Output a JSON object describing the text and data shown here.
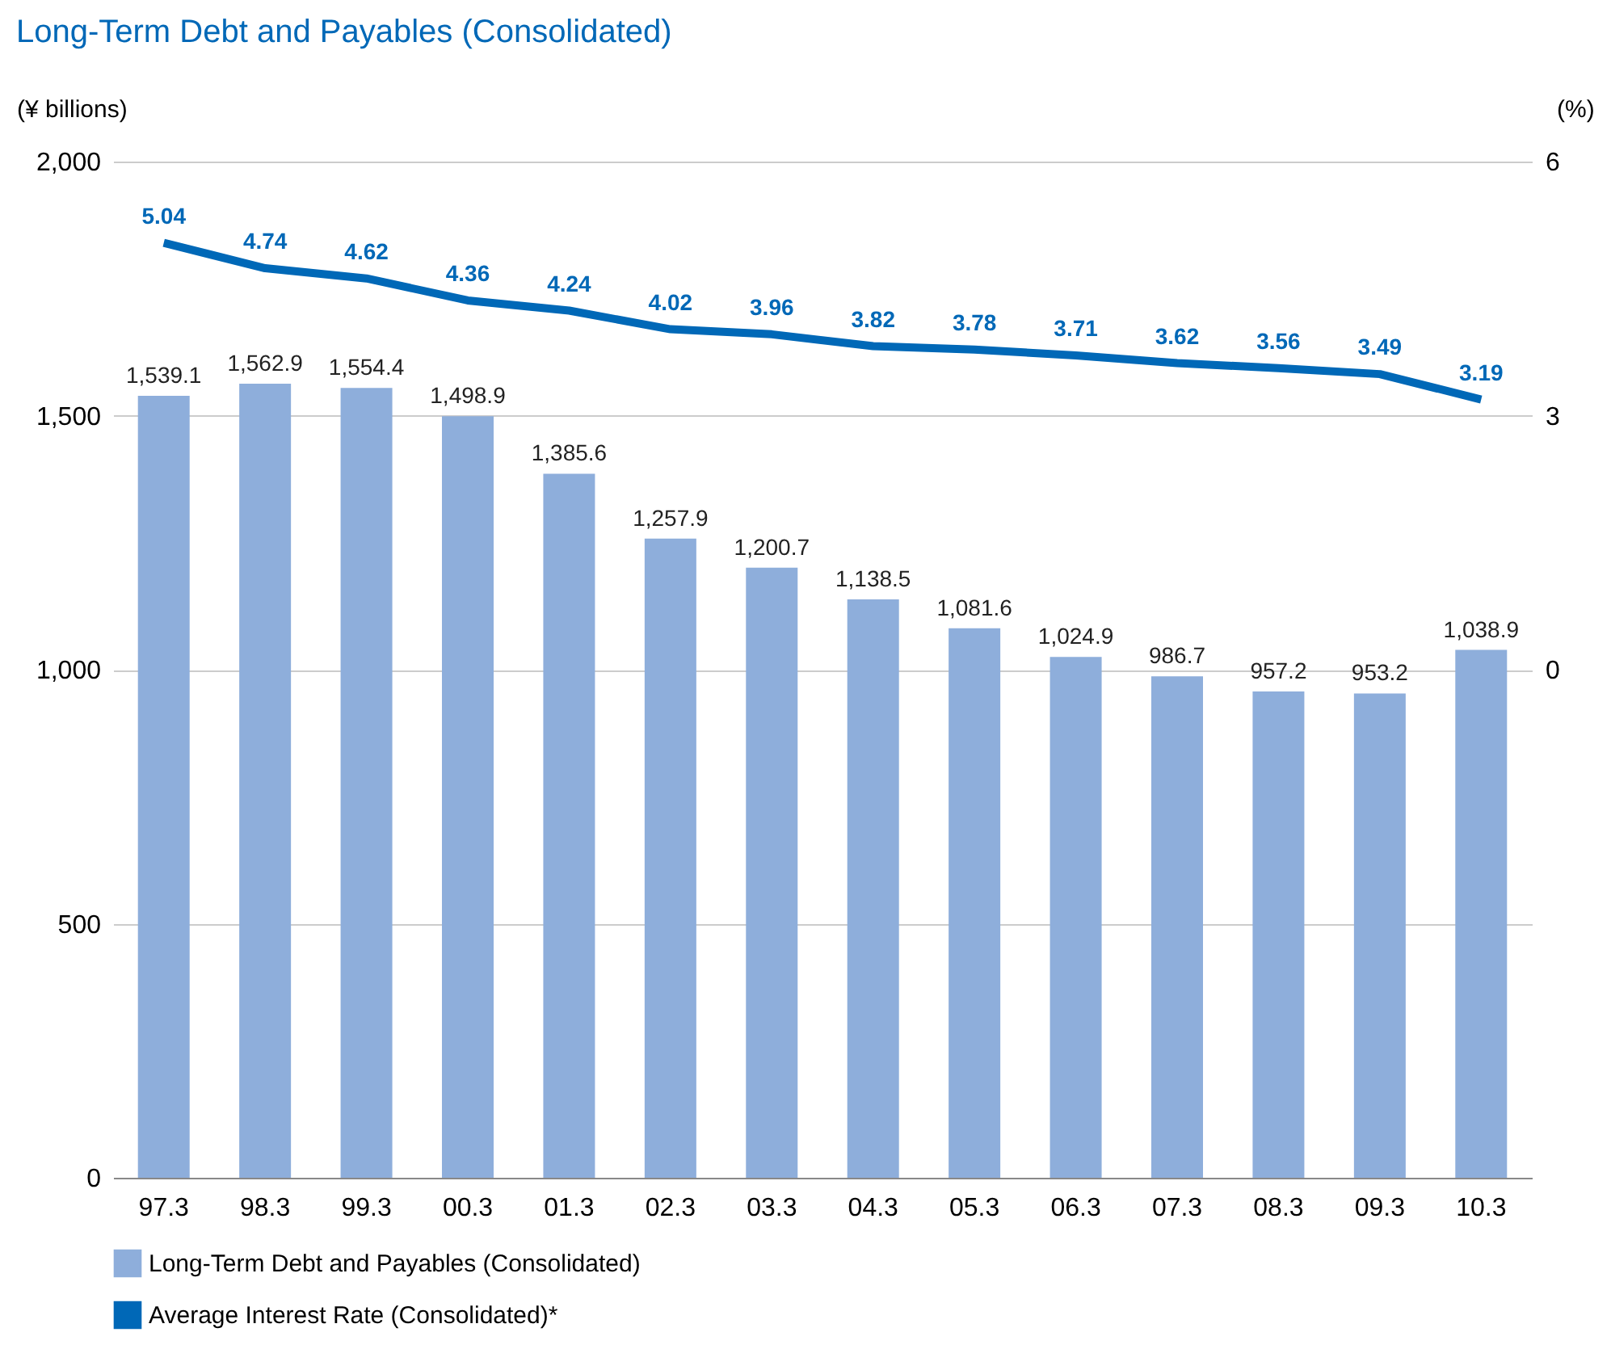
{
  "chart_data": {
    "type": "bar",
    "title": "Long-Term Debt and Payables (Consolidated)",
    "ylabel": "(¥ billions)",
    "y2label": "(%)",
    "categories": [
      "97.3",
      "98.3",
      "99.3",
      "00.3",
      "01.3",
      "02.3",
      "03.3",
      "04.3",
      "05.3",
      "06.3",
      "07.3",
      "08.3",
      "09.3",
      "10.3"
    ],
    "series": [
      {
        "name": "Long-Term Debt and Payables (Consolidated)",
        "color": "#8eaedb",
        "values": [
          1539.1,
          1562.9,
          1554.4,
          1498.9,
          1385.6,
          1257.9,
          1200.7,
          1138.5,
          1081.6,
          1024.9,
          986.7,
          957.2,
          953.2,
          1038.9
        ],
        "value_labels": [
          "1,539.1",
          "1,562.9",
          "1,554.4",
          "1,498.9",
          "1,385.6",
          "1,257.9",
          "1,200.7",
          "1,138.5",
          "1,081.6",
          "1,024.9",
          "986.7",
          "957.2",
          "953.2",
          "1,038.9"
        ]
      },
      {
        "name": "Average Interest Rate (Consolidated)*",
        "type": "line",
        "axis": "y2",
        "color": "#0068b7",
        "values": [
          5.04,
          4.74,
          4.62,
          4.36,
          4.24,
          4.02,
          3.96,
          3.82,
          3.78,
          3.71,
          3.62,
          3.56,
          3.49,
          3.19
        ]
      }
    ],
    "ylim": [
      0,
      2000
    ],
    "yticks": [
      0,
      500,
      {
        "value": 1000,
        "label": "1,000"
      },
      {
        "value": 1500,
        "label": "1,500"
      },
      {
        "value": 2000,
        "label": "2,000"
      }
    ],
    "y2lim": [
      -6,
      6
    ],
    "y2ticks": [
      0,
      3,
      6
    ],
    "grid": "y",
    "legend": "bottom",
    "data_labels": true,
    "marker": "none",
    "line_style": "solid"
  }
}
